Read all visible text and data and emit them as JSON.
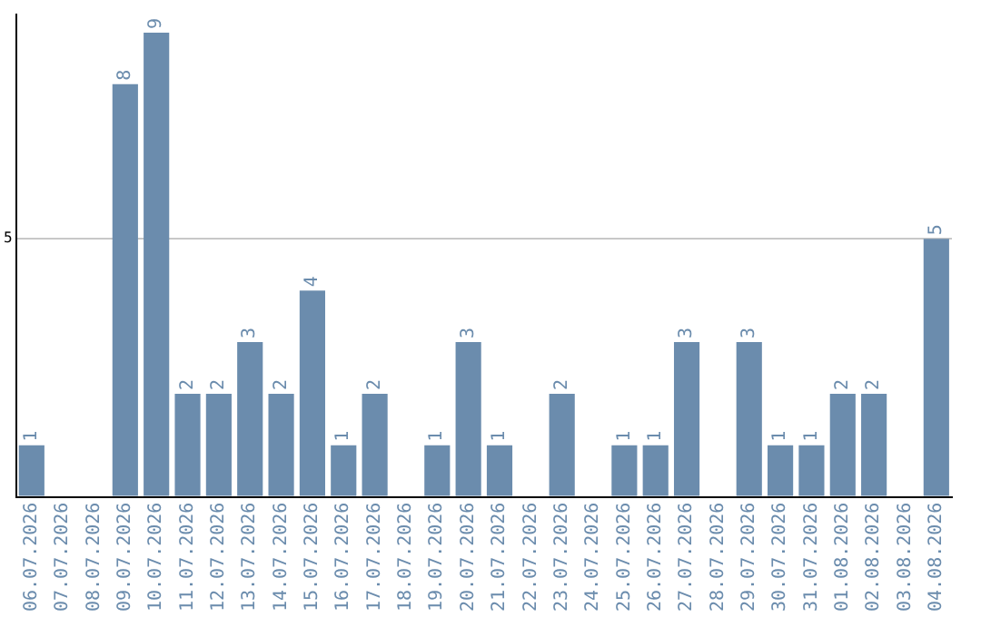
{
  "chart_data": {
    "type": "bar",
    "categories": [
      "06.07.2026",
      "07.07.2026",
      "08.07.2026",
      "09.07.2026",
      "10.07.2026",
      "11.07.2026",
      "12.07.2026",
      "13.07.2026",
      "14.07.2026",
      "15.07.2026",
      "16.07.2026",
      "17.07.2026",
      "18.07.2026",
      "19.07.2026",
      "20.07.2026",
      "21.07.2026",
      "22.07.2026",
      "23.07.2026",
      "24.07.2026",
      "25.07.2026",
      "26.07.2026",
      "27.07.2026",
      "28.07.2026",
      "29.07.2026",
      "30.07.2026",
      "31.07.2026",
      "01.08.2026",
      "02.08.2026",
      "03.08.2026",
      "04.08.2026"
    ],
    "values": [
      1,
      null,
      null,
      8,
      9,
      2,
      2,
      3,
      2,
      4,
      1,
      2,
      null,
      1,
      3,
      1,
      null,
      2,
      null,
      1,
      1,
      3,
      null,
      3,
      1,
      1,
      2,
      2,
      null,
      5
    ],
    "color": "#6b8cad",
    "ylim": [
      0,
      9.35
    ],
    "yticks": [
      {
        "value": 0,
        "label": null
      },
      5
    ],
    "grid": "y",
    "data_labels": true,
    "legend": false
  }
}
